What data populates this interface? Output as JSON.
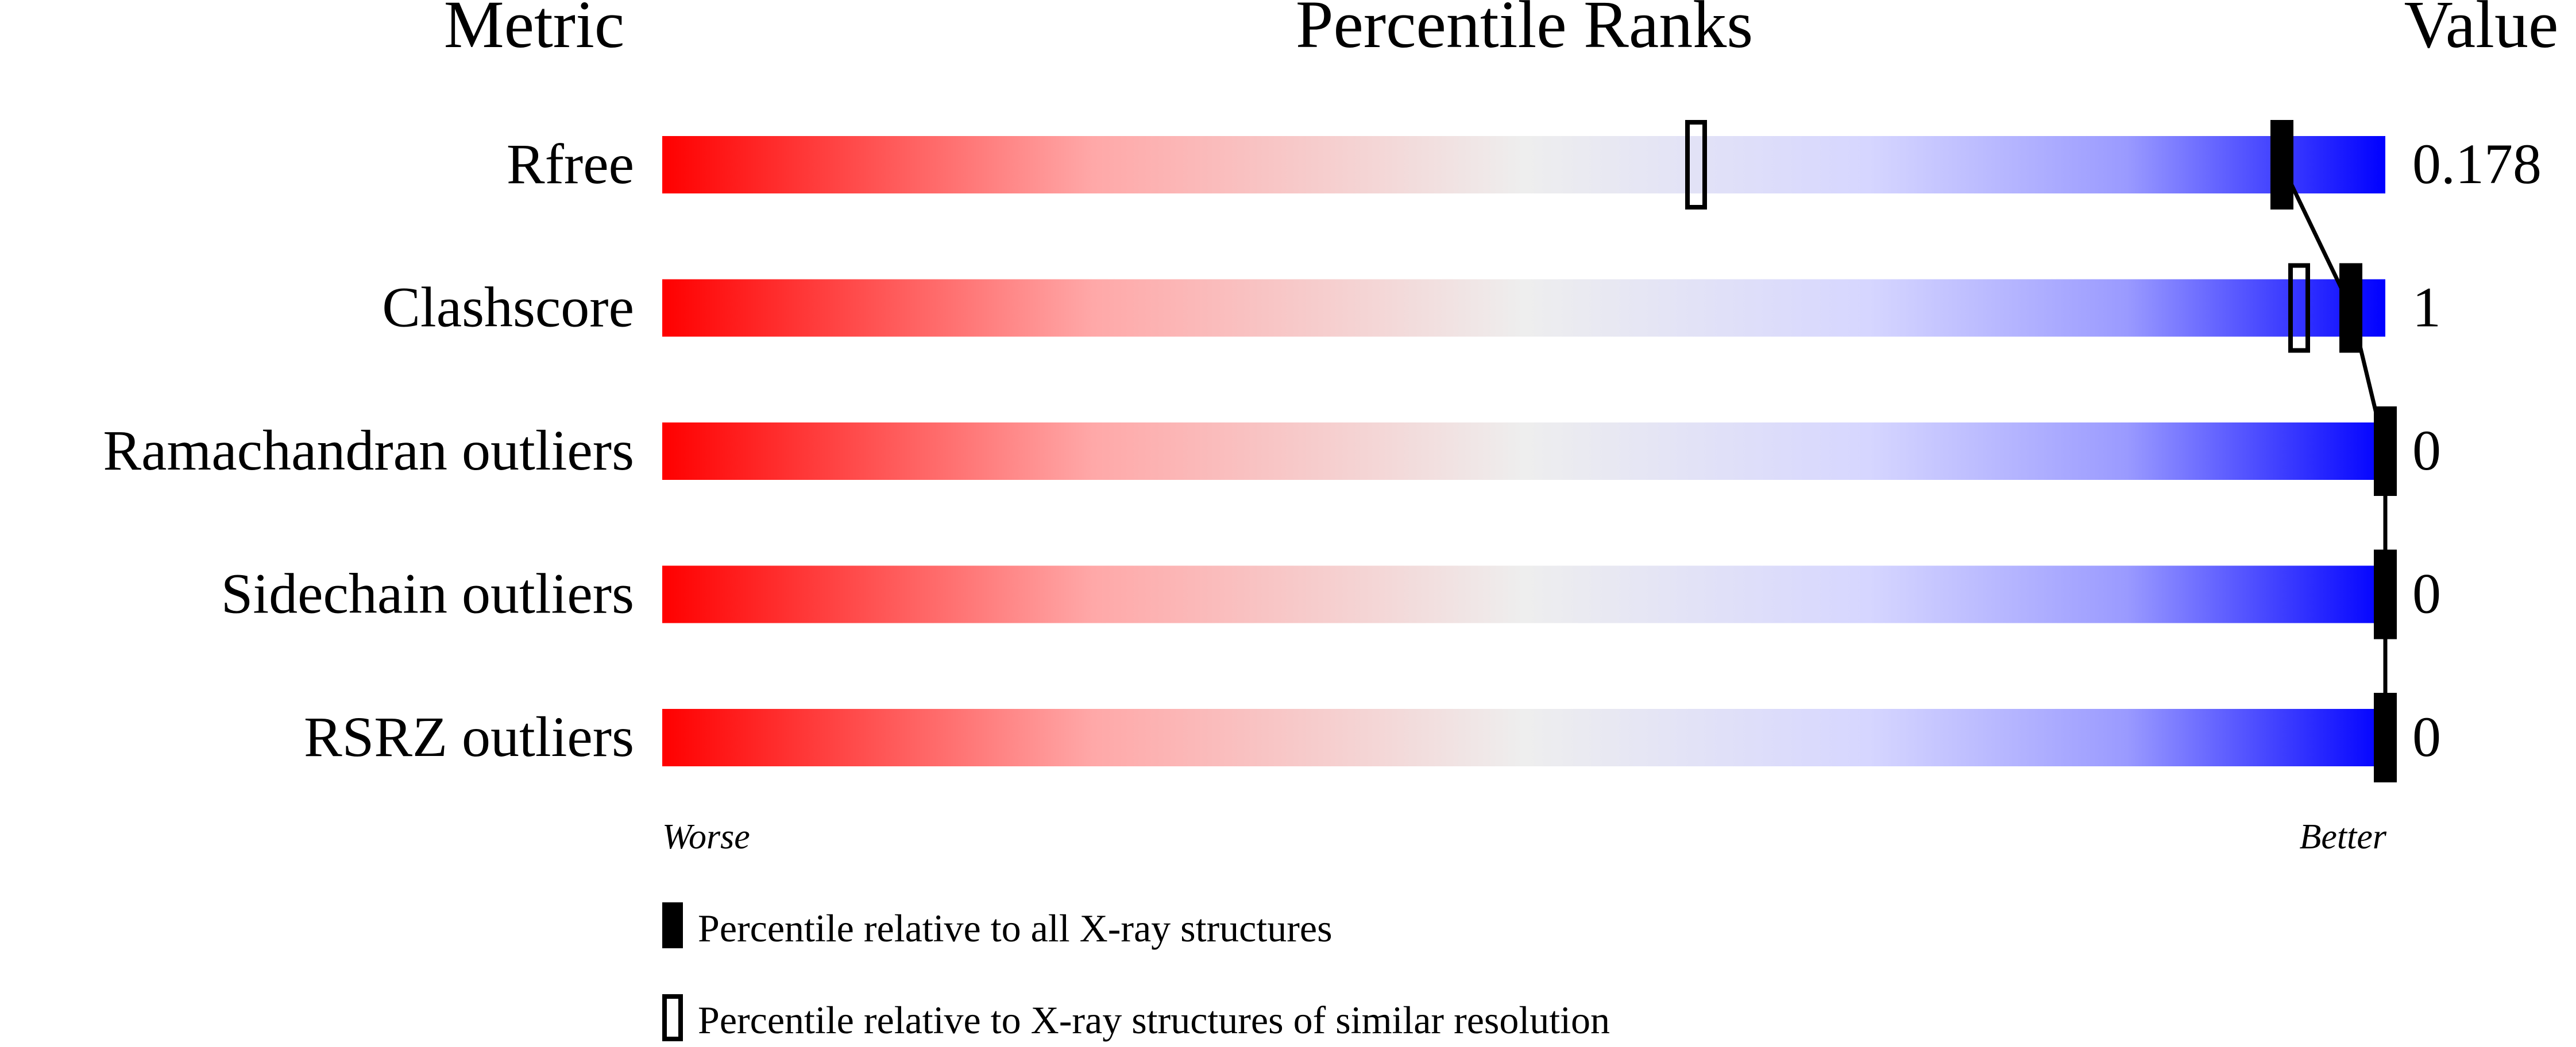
{
  "chart_data": {
    "type": "percentile-slider",
    "headers": {
      "metric": "Metric",
      "ranks": "Percentile Ranks",
      "value": "Value"
    },
    "axis": {
      "min": 0,
      "max": 100,
      "left_label": "Worse",
      "right_label": "Better"
    },
    "metrics": [
      {
        "name": "Rfree",
        "value": "0.178",
        "percentile_all": 94,
        "percentile_similar": 60
      },
      {
        "name": "Clashscore",
        "value": "1",
        "percentile_all": 98,
        "percentile_similar": 95
      },
      {
        "name": "Ramachandran outliers",
        "value": "0",
        "percentile_all": 100,
        "percentile_similar": null
      },
      {
        "name": "Sidechain outliers",
        "value": "0",
        "percentile_all": 100,
        "percentile_similar": null
      },
      {
        "name": "RSRZ outliers",
        "value": "0",
        "percentile_all": 100,
        "percentile_similar": null
      }
    ],
    "legend": {
      "all": "Percentile relative to all X-ray structures",
      "similar": "Percentile relative to X-ray structures of similar resolution"
    },
    "colors": {
      "worse": "#ff0000",
      "middle": "#eeeeee",
      "better": "#0000ff",
      "marker": "#000000"
    }
  }
}
